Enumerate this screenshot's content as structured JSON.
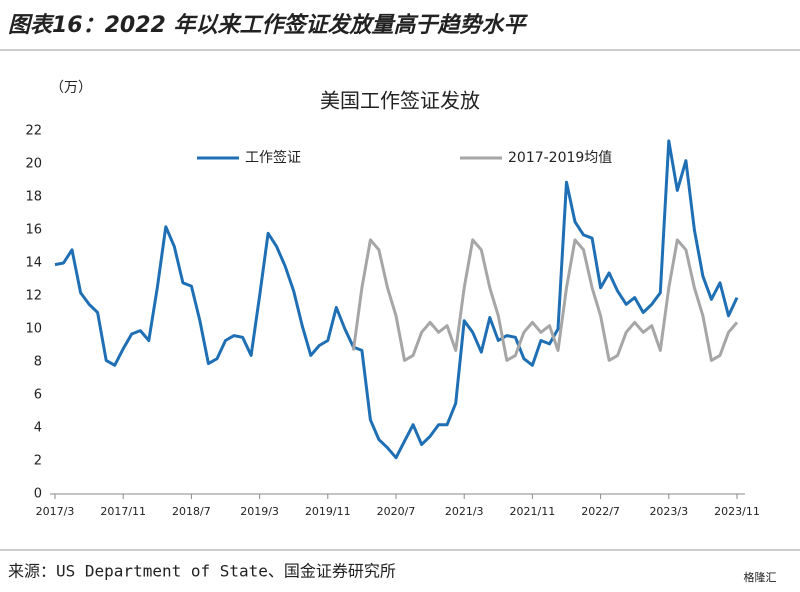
{
  "header": {
    "title": "图表16：2022 年以来工作签证发放量高于趋势水平"
  },
  "chart_data": {
    "type": "line",
    "title": "美国工作签证发放",
    "y_label": "（万）",
    "categories": [
      "2017/3",
      null,
      null,
      null,
      null,
      null,
      null,
      null,
      "2017/11",
      null,
      null,
      null,
      null,
      null,
      null,
      null,
      "2018/7",
      null,
      null,
      null,
      null,
      null,
      null,
      null,
      "2019/3",
      null,
      null,
      null,
      null,
      null,
      null,
      null,
      "2019/11",
      null,
      null,
      null,
      null,
      null,
      null,
      null,
      "2020/7",
      null,
      null,
      null,
      null,
      null,
      null,
      null,
      "2021/3",
      null,
      null,
      null,
      null,
      null,
      null,
      null,
      "2021/11",
      null,
      null,
      null,
      null,
      null,
      null,
      null,
      "2022/7",
      null,
      null,
      null,
      null,
      null,
      null,
      null,
      "2023/3",
      null,
      null,
      null,
      null,
      null,
      null,
      null,
      "2023/11"
    ],
    "series": [
      {
        "name": "工作签证",
        "color": "#1f6fb5",
        "values": [
          13.9,
          14.0,
          14.8,
          12.2,
          11.5,
          11.0,
          8.1,
          7.8,
          8.8,
          9.7,
          9.9,
          9.3,
          12.5,
          16.2,
          15.0,
          12.8,
          12.6,
          10.5,
          7.9,
          8.2,
          9.3,
          9.6,
          9.5,
          8.4,
          12.0,
          15.8,
          15.0,
          13.8,
          12.3,
          10.2,
          8.4,
          9.0,
          9.3,
          11.3,
          10.0,
          8.9,
          8.7,
          4.5,
          3.3,
          2.8,
          2.2,
          3.2,
          4.2,
          3.0,
          3.5,
          4.2,
          4.2,
          5.5,
          10.5,
          9.8,
          8.6,
          10.7,
          9.3,
          9.6,
          9.5,
          8.2,
          7.8,
          9.3,
          9.1,
          10.0,
          18.9,
          16.5,
          15.7,
          15.5,
          12.5,
          13.4,
          12.3,
          11.5,
          11.9,
          11.0,
          11.5,
          12.2,
          21.4,
          18.4,
          20.2,
          16.0,
          13.2,
          11.8,
          12.8,
          10.8,
          11.9
        ]
      },
      {
        "name": "2017-2019均值",
        "color": "#a6a6a6",
        "values": [
          null,
          null,
          null,
          null,
          null,
          null,
          null,
          null,
          null,
          null,
          null,
          null,
          null,
          null,
          null,
          null,
          null,
          null,
          null,
          null,
          null,
          null,
          null,
          null,
          null,
          null,
          null,
          null,
          null,
          null,
          null,
          null,
          null,
          null,
          null,
          8.7,
          12.5,
          15.4,
          14.8,
          12.5,
          10.8,
          8.1,
          8.4,
          9.8,
          10.4,
          9.8,
          10.2,
          8.7,
          12.5,
          15.4,
          14.8,
          12.5,
          10.8,
          8.1,
          8.4,
          9.8,
          10.4,
          9.8,
          10.2,
          8.7,
          12.5,
          15.4,
          14.8,
          12.5,
          10.8,
          8.1,
          8.4,
          9.8,
          10.4,
          9.8,
          10.2,
          8.7,
          12.5,
          15.4,
          14.8,
          12.5,
          10.8,
          8.1,
          8.4,
          9.8,
          10.4
        ]
      }
    ],
    "ylim": [
      0,
      22
    ],
    "yticks": [
      0,
      2,
      4,
      6,
      8,
      10,
      12,
      14,
      16,
      18,
      20,
      22
    ]
  },
  "footer": {
    "source": "来源：US Department of State、国金证券研究所",
    "watermark": "格隆汇"
  }
}
